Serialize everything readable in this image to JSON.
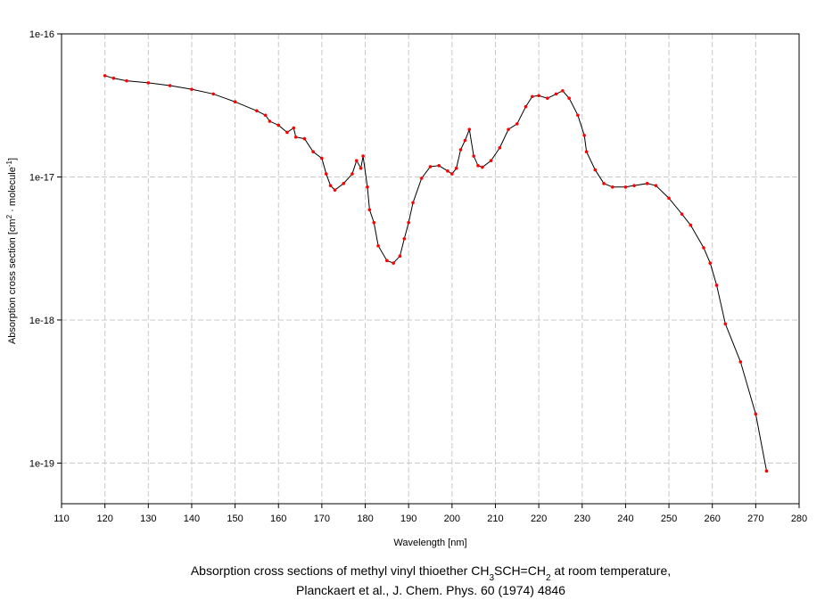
{
  "chart_data": {
    "type": "line",
    "x_label": "Wavelength [nm]",
    "y_label": [
      "Absorption cross section [cm",
      "2",
      " · molecule",
      "-1",
      "]"
    ],
    "caption": [
      [
        "Absorption cross sections of methyl vinyl thioether CH",
        "3",
        "SCH=CH",
        "2",
        " at room temperature,"
      ],
      [
        "Planckaert et al., J. Chem. Phys. 60 (1974) 4846"
      ]
    ],
    "xlim": [
      110,
      280
    ],
    "xticks": [
      110,
      120,
      130,
      140,
      150,
      160,
      170,
      180,
      190,
      200,
      210,
      220,
      230,
      240,
      250,
      260,
      270,
      280
    ],
    "ylim": [
      5.2e-20,
      1e-16
    ],
    "yticks": [
      {
        "value": 1e-19,
        "label": "1e-19"
      },
      {
        "value": 1e-18,
        "label": "1e-18"
      },
      {
        "value": 1e-17,
        "label": "1e-17"
      },
      {
        "value": 1e-16,
        "label": "1e-16"
      }
    ],
    "log_y": true,
    "grid": true,
    "line_color": "#000000",
    "marker_color": "#ff0000",
    "x": [
      120,
      122,
      125,
      130,
      135,
      140,
      145,
      150,
      155,
      157,
      158,
      160,
      162,
      163.5,
      164,
      166,
      168,
      170,
      171,
      172,
      173,
      175,
      177,
      178,
      179,
      179.5,
      180.5,
      181,
      182,
      183,
      185,
      186.5,
      188,
      189,
      190,
      191,
      193,
      195,
      197,
      199,
      200,
      201,
      202,
      203,
      204,
      205,
      206,
      207,
      209,
      211,
      213,
      215,
      217,
      218.5,
      220,
      222,
      224,
      225.5,
      227,
      229,
      230.5,
      231,
      233,
      235,
      237,
      240,
      242,
      245,
      247,
      250,
      253,
      255,
      258,
      259.5,
      261,
      263,
      266.5,
      270,
      272.5
    ],
    "values": [
      5.1e-17,
      4.9e-17,
      4.7e-17,
      4.55e-17,
      4.35e-17,
      4.1e-17,
      3.8e-17,
      3.35e-17,
      2.9e-17,
      2.7e-17,
      2.45e-17,
      2.3e-17,
      2.05e-17,
      2.2e-17,
      1.9e-17,
      1.85e-17,
      1.5e-17,
      1.35e-17,
      1.05e-17,
      8.7e-18,
      8.1e-18,
      9e-18,
      1.05e-17,
      1.3e-17,
      1.15e-17,
      1.4e-17,
      8.5e-18,
      5.9e-18,
      4.8e-18,
      3.3e-18,
      2.6e-18,
      2.5e-18,
      2.8e-18,
      3.7e-18,
      4.8e-18,
      6.6e-18,
      9.8e-18,
      1.18e-17,
      1.2e-17,
      1.1e-17,
      1.05e-17,
      1.15e-17,
      1.55e-17,
      1.8e-17,
      2.15e-17,
      1.4e-17,
      1.2e-17,
      1.17e-17,
      1.3e-17,
      1.6e-17,
      2.15e-17,
      2.35e-17,
      3.1e-17,
      3.65e-17,
      3.7e-17,
      3.55e-17,
      3.8e-17,
      4e-17,
      3.55e-17,
      2.7e-17,
      1.95e-17,
      1.5e-17,
      1.12e-17,
      9e-18,
      8.5e-18,
      8.5e-18,
      8.7e-18,
      9e-18,
      8.7e-18,
      7.1e-18,
      5.5e-18,
      4.6e-18,
      3.2e-18,
      2.5e-18,
      1.75e-18,
      9.4e-19,
      5.1e-19,
      2.2e-19,
      8.8e-20
    ]
  }
}
